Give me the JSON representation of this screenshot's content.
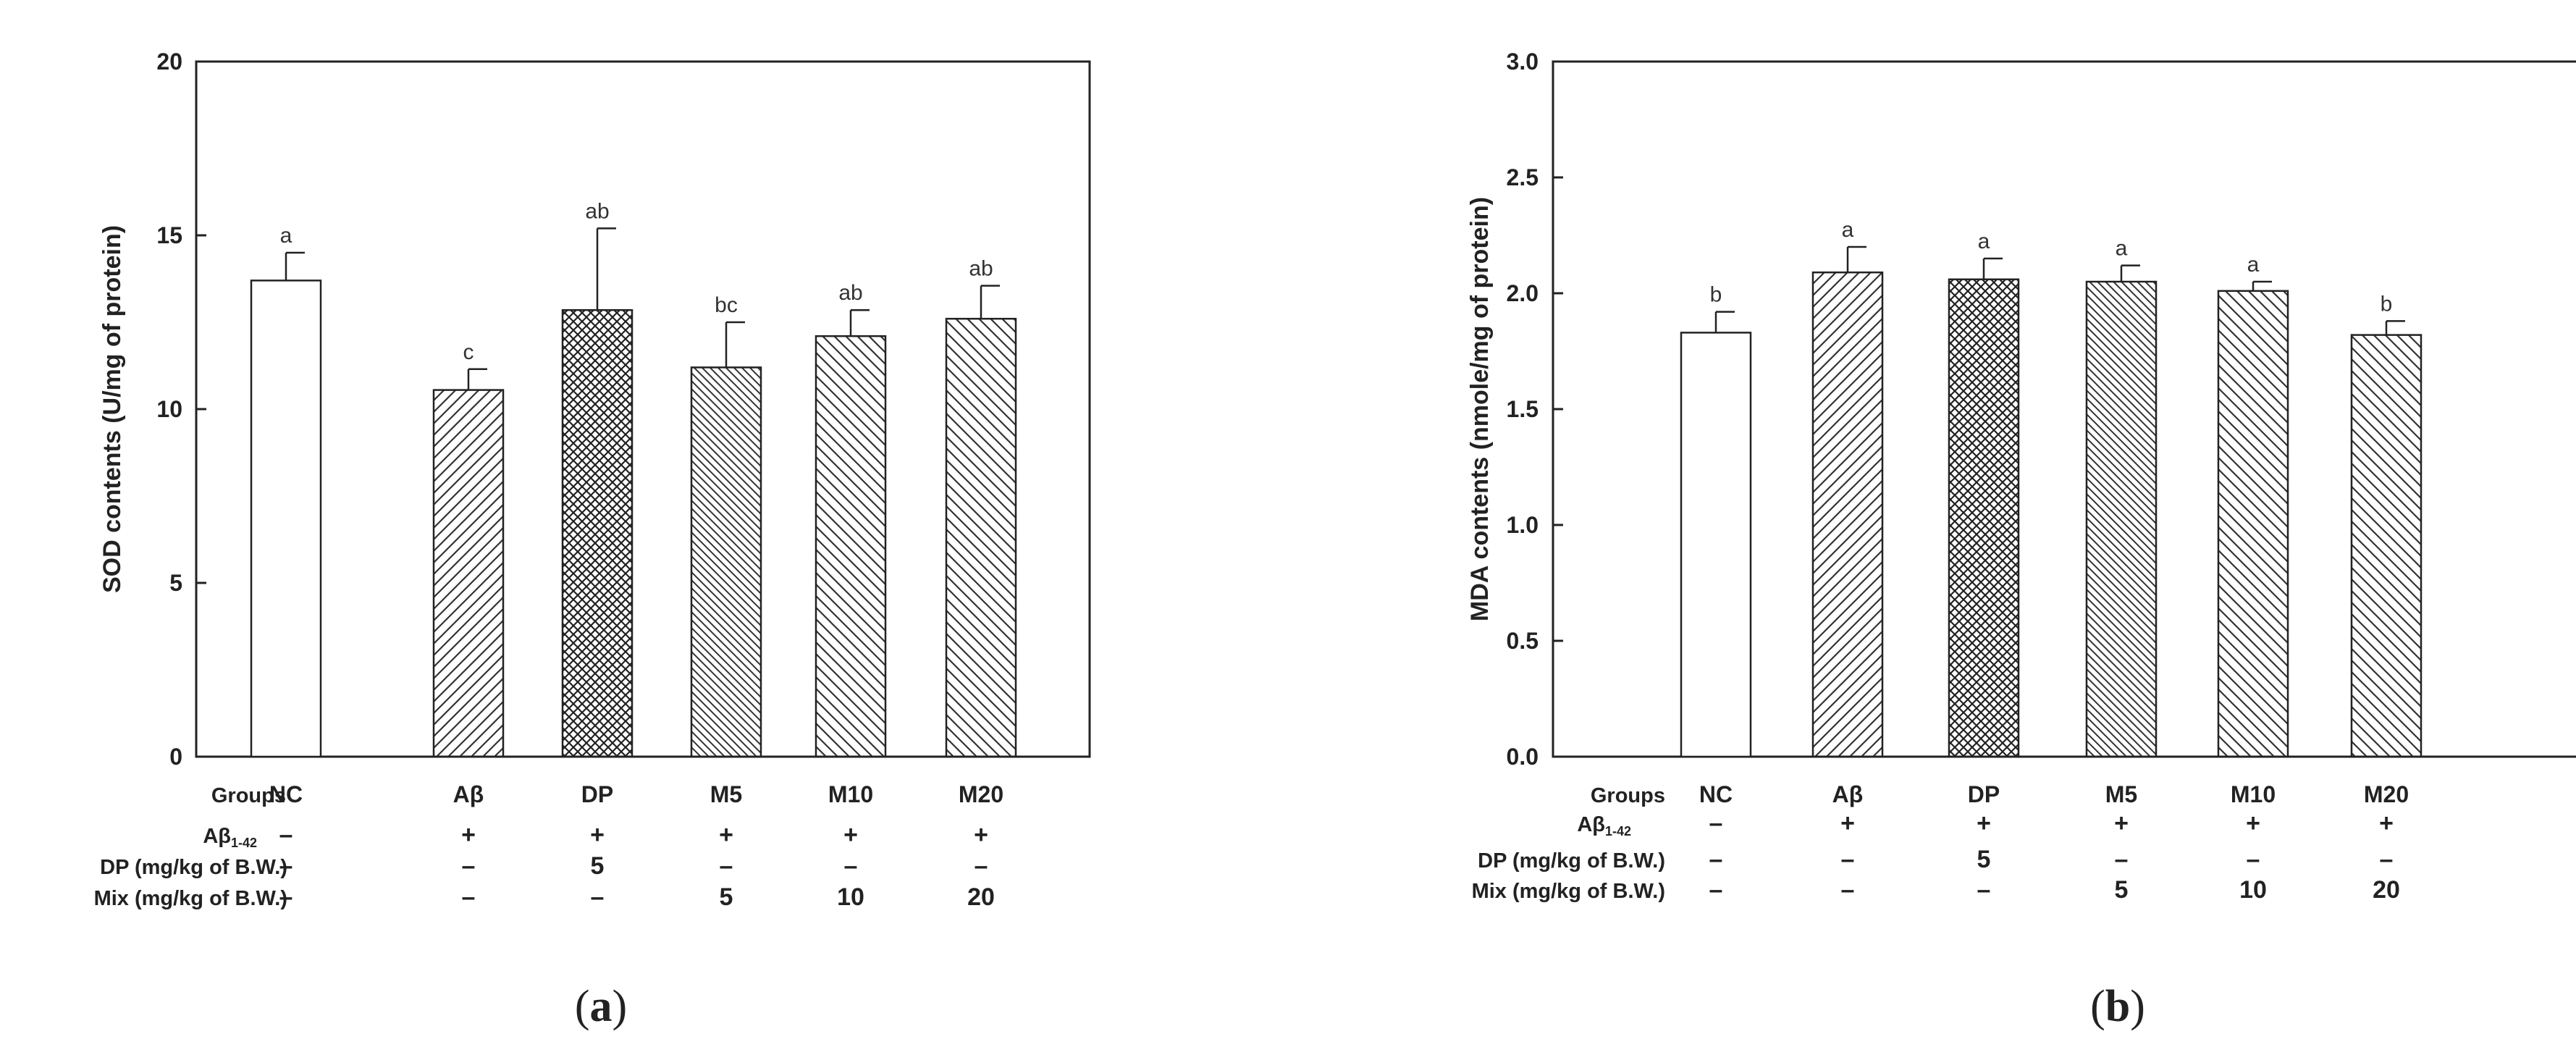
{
  "panels": [
    {
      "panel_label": "(a)",
      "panel_letter": "a",
      "colors": {
        "bar_stroke": "#222222",
        "hatch": "#333333",
        "background": "#ffffff"
      },
      "chart_data": {
        "type": "bar",
        "title": "",
        "xlabel": "",
        "ylabel": "SOD contents (U/mg of protein)",
        "ylim": [
          0,
          20
        ],
        "yticks": [
          "0",
          "5",
          "10",
          "15",
          "20"
        ],
        "ytick_values": [
          0,
          5,
          10,
          15,
          20
        ],
        "grid": false,
        "legend": "none",
        "categories": [
          "NC",
          "Aβ",
          "DP",
          "M5",
          "M10",
          "M20"
        ],
        "values": [
          13.7,
          10.55,
          12.85,
          11.2,
          12.1,
          12.6
        ],
        "errors": [
          0.8,
          0.6,
          2.35,
          1.3,
          0.75,
          0.95
        ],
        "significance": [
          "a",
          "c",
          "ab",
          "bc",
          "ab",
          "ab"
        ],
        "patterns": [
          "none",
          "diag-right",
          "crosshatch",
          "diag-left-dense",
          "diag-left",
          "diag-left"
        ]
      },
      "conditions": {
        "header_label": "Groups",
        "rows": [
          {
            "label_main": "Aβ",
            "label_sub": "1-42",
            "values": [
              "–",
              "+",
              "+",
              "+",
              "+",
              "+"
            ]
          },
          {
            "label": "DP (mg/kg of B.W.)",
            "values": [
              "–",
              "–",
              "5",
              "–",
              "–",
              "–"
            ]
          },
          {
            "label": "Mix (mg/kg of B.W.)",
            "values": [
              "–",
              "–",
              "–",
              "5",
              "10",
              "20"
            ]
          }
        ]
      }
    },
    {
      "panel_label": "(b)",
      "panel_letter": "b",
      "colors": {
        "bar_stroke": "#222222",
        "hatch": "#333333",
        "background": "#ffffff"
      },
      "chart_data": {
        "type": "bar",
        "title": "",
        "xlabel": "",
        "ylabel": "MDA contents (nmole/mg of protein)",
        "ylim": [
          0,
          3.0
        ],
        "yticks": [
          "0.0",
          "0.5",
          "1.0",
          "1.5",
          "2.0",
          "2.5",
          "3.0"
        ],
        "ytick_values": [
          0,
          0.5,
          1.0,
          1.5,
          2.0,
          2.5,
          3.0
        ],
        "grid": false,
        "legend": "none",
        "categories": [
          "NC",
          "Aβ",
          "DP",
          "M5",
          "M10",
          "M20"
        ],
        "values": [
          1.83,
          2.09,
          2.06,
          2.05,
          2.01,
          1.82
        ],
        "errors": [
          0.09,
          0.11,
          0.09,
          0.07,
          0.04,
          0.06
        ],
        "significance": [
          "b",
          "a",
          "a",
          "a",
          "a",
          "b"
        ],
        "patterns": [
          "none",
          "diag-right",
          "crosshatch",
          "diag-left-dense",
          "diag-left",
          "diag-left"
        ]
      },
      "conditions": {
        "header_label": "Groups",
        "rows": [
          {
            "label_main": "Aβ",
            "label_sub": "1-42",
            "values": [
              "–",
              "+",
              "+",
              "+",
              "+",
              "+"
            ]
          },
          {
            "label": "DP (mg/kg of B.W.)",
            "values": [
              "–",
              "–",
              "5",
              "–",
              "–",
              "–"
            ]
          },
          {
            "label": "Mix (mg/kg of B.W.)",
            "values": [
              "–",
              "–",
              "–",
              "5",
              "10",
              "20"
            ]
          }
        ]
      }
    }
  ]
}
